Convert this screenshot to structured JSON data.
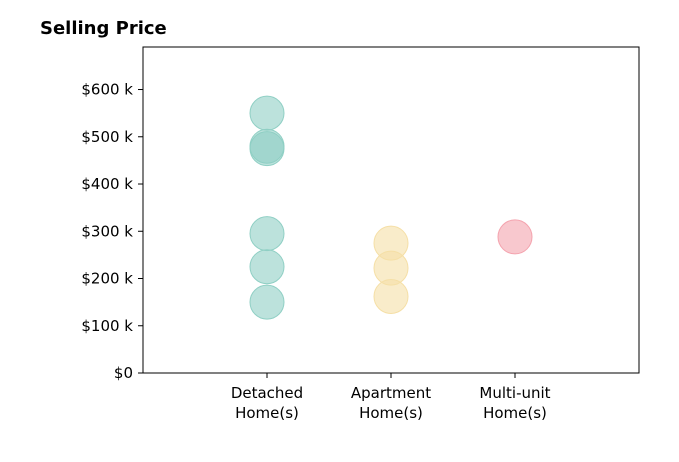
{
  "chart_data": {
    "type": "scatter",
    "title": "Selling Price",
    "xlabel": "",
    "ylabel": "",
    "categories": [
      [
        "Detached",
        "Home(s)"
      ],
      [
        "Apartment",
        "Home(s)"
      ],
      [
        "Multi-unit",
        "Home(s)"
      ]
    ],
    "y_ticks": [
      0,
      100,
      200,
      300,
      400,
      500,
      600
    ],
    "y_tick_labels": [
      "$0",
      "$100 k",
      "$200 k",
      "$300 k",
      "$400 k",
      "$500 k",
      "$600 k"
    ],
    "ylim": [
      0,
      690
    ],
    "x_range": [
      -1,
      3
    ],
    "grid": false,
    "series": [
      {
        "category_index": 0,
        "color": "#8fcfc4",
        "values": [
          550,
          480,
          475,
          295,
          225,
          150
        ]
      },
      {
        "category_index": 1,
        "color": "#f5dfa6",
        "values": [
          275,
          222,
          162
        ]
      },
      {
        "category_index": 2,
        "color": "#f4a3ae",
        "values": [
          288
        ]
      }
    ]
  }
}
